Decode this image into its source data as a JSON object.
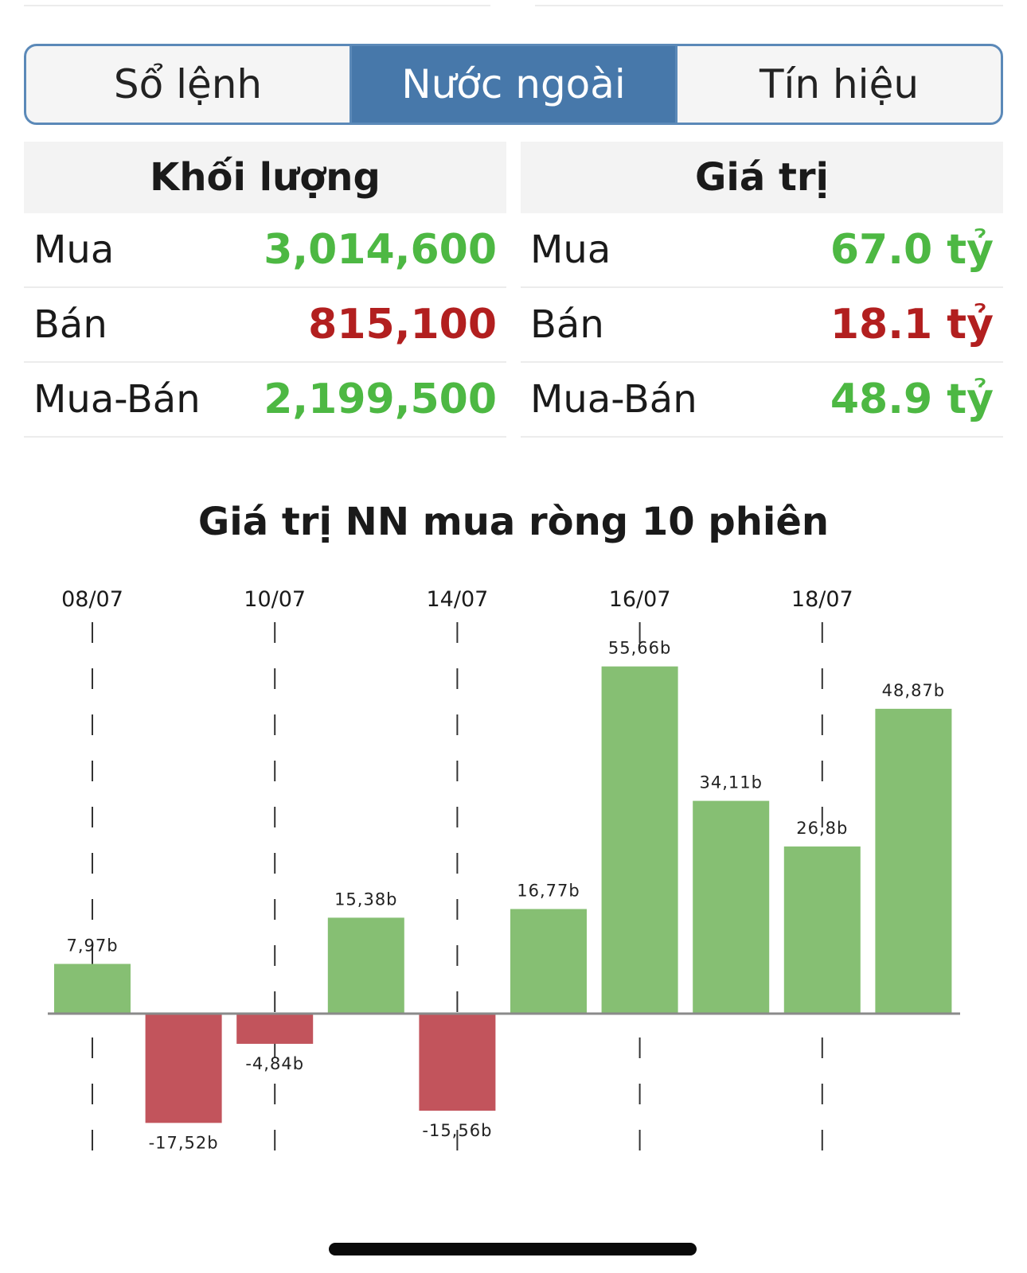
{
  "tabs": [
    {
      "label": "Sổ lệnh",
      "active": false
    },
    {
      "label": "Nước ngoài",
      "active": true
    },
    {
      "label": "Tín hiệu",
      "active": false
    }
  ],
  "volume": {
    "header": "Khối lượng",
    "rows": [
      {
        "label": "Mua",
        "value": "3,014,600",
        "color": "#4db843"
      },
      {
        "label": "Bán",
        "value": "815,100",
        "color": "#b21f1f"
      },
      {
        "label": "Mua-Bán",
        "value": "2,199,500",
        "color": "#4db843"
      }
    ]
  },
  "value": {
    "header": "Giá trị",
    "rows": [
      {
        "label": "Mua",
        "value": "67.0 tỷ",
        "color": "#4db843"
      },
      {
        "label": "Bán",
        "value": "18.1 tỷ",
        "color": "#b21f1f"
      },
      {
        "label": "Mua-Bán",
        "value": "48.9 tỷ",
        "color": "#4db843"
      }
    ]
  },
  "chart_title": "Giá trị NN mua ròng 10 phiên",
  "chart_data": {
    "type": "bar",
    "title": "Giá trị NN mua ròng 10 phiên",
    "x_tick_labels": [
      "08/07",
      "10/07",
      "14/07",
      "16/07",
      "18/07"
    ],
    "x_tick_bar_index": [
      0,
      2,
      4,
      6,
      8
    ],
    "values": [
      7.97,
      -17.52,
      -4.84,
      15.38,
      -15.56,
      16.77,
      55.66,
      34.11,
      26.8,
      48.87
    ],
    "data_labels": [
      "7,97b",
      "-17,52b",
      "-4,84b",
      "15,38b",
      "-15,56b",
      "16,77b",
      "55,66b",
      "34,11b",
      "26,8b",
      "48,87b"
    ],
    "positive_color": "#86bf73",
    "negative_color": "#c2545c",
    "grid": "vertical dashed at tick labels",
    "legend": "none"
  }
}
